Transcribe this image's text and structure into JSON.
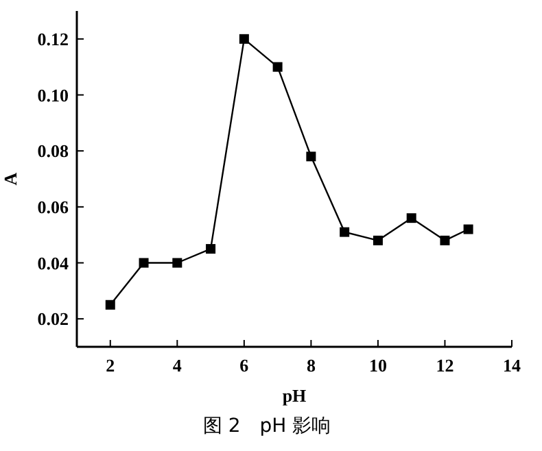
{
  "chart_data": {
    "type": "line",
    "xlabel": "pH",
    "ylabel": "A",
    "annotations": [
      "图 2　pH 影响"
    ],
    "x": [
      2,
      3,
      4,
      5,
      6,
      7,
      8,
      9,
      10,
      11,
      12,
      12.7
    ],
    "series": [
      {
        "color": "#000000",
        "values": [
          0.025,
          0.04,
          0.04,
          0.045,
          0.12,
          0.11,
          0.078,
          0.051,
          0.048,
          0.056,
          0.048,
          0.052
        ]
      }
    ],
    "xlim": [
      1,
      14
    ],
    "xticks": [
      2,
      4,
      6,
      8,
      10,
      12,
      14
    ],
    "ylim": [
      0.01,
      0.13
    ],
    "yticks": [
      {
        "value": 0.02,
        "label": "0.02"
      },
      {
        "value": 0.04,
        "label": "0.04"
      },
      {
        "value": 0.06,
        "label": "0.06"
      },
      {
        "value": 0.08,
        "label": "0.08"
      },
      {
        "value": 0.1,
        "label": "0.10"
      },
      {
        "value": 0.12,
        "label": "0.12"
      }
    ],
    "marker": "square",
    "line_style": "solid"
  }
}
